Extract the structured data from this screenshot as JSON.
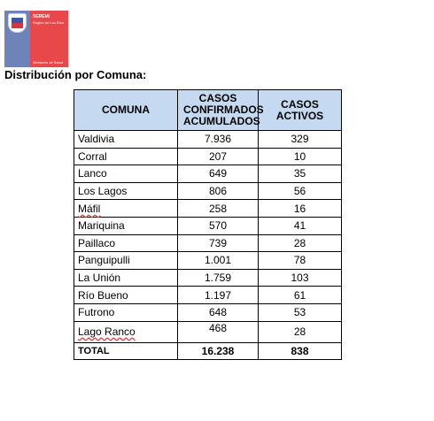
{
  "logo": {
    "line1": "SEREMI",
    "line2": "Región de Los Ríos",
    "line3": "Ministerio de Salud"
  },
  "heading": "Distribución por Comuna:",
  "table": {
    "headers": [
      "COMUNA",
      "CASOS CONFIRMADOS ACUMULADOS",
      "CASOS ACTIVOS"
    ],
    "rows": [
      {
        "comuna": "Valdivia",
        "acumulados": "7.936",
        "activos": "329"
      },
      {
        "comuna": "Corral",
        "acumulados": "207",
        "activos": "10"
      },
      {
        "comuna": "Lanco",
        "acumulados": "649",
        "activos": "35"
      },
      {
        "comuna": "Los Lagos",
        "acumulados": "806",
        "activos": "56"
      },
      {
        "comuna": "Máfil",
        "acumulados": "258",
        "activos": "16"
      },
      {
        "comuna": "Mariquina",
        "acumulados": "570",
        "activos": "41"
      },
      {
        "comuna": "Paillaco",
        "acumulados": "739",
        "activos": "28"
      },
      {
        "comuna": "Panguipulli",
        "acumulados": "1.001",
        "activos": "78"
      },
      {
        "comuna": "La Unión",
        "acumulados": "1.759",
        "activos": "103"
      },
      {
        "comuna": "Río Bueno",
        "acumulados": "1.197",
        "activos": "61"
      },
      {
        "comuna": "Futrono",
        "acumulados": "648",
        "activos": "53"
      },
      {
        "comuna": "Lago Ranco",
        "acumulados": "468",
        "activos": "28"
      }
    ],
    "total": {
      "label": "TOTAL",
      "acumulados": "16.238",
      "activos": "838"
    }
  }
}
